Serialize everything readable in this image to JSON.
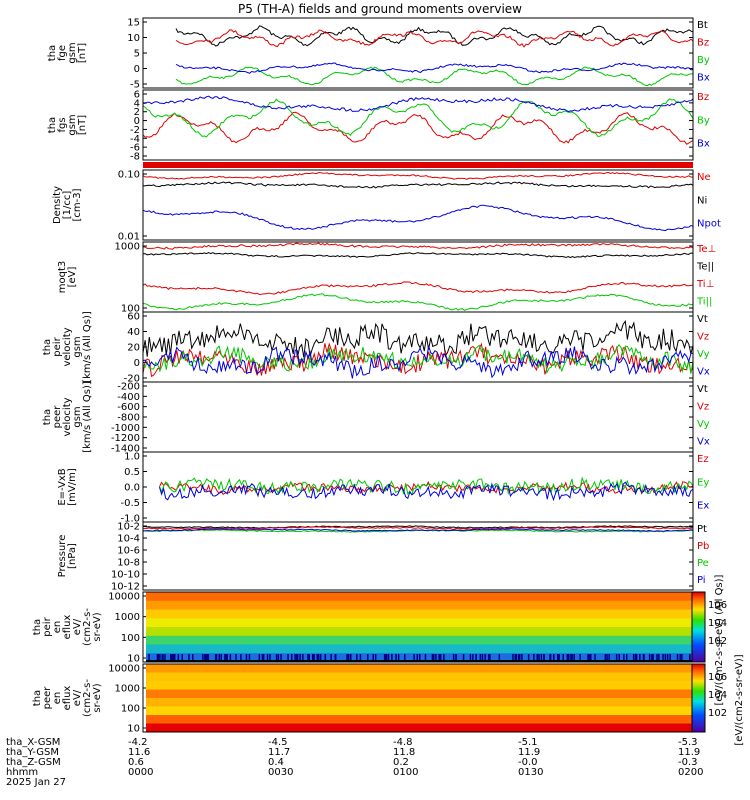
{
  "title": "P5 (TH-A) fields and ground moments overview",
  "colors": {
    "black": "#000000",
    "red": "#e00000",
    "green": "#00c800",
    "blue": "#0000e0"
  },
  "chart_data": [
    {
      "id": "p1",
      "type": "line",
      "ylabel": [
        "tha",
        "fge",
        "gsm",
        "[nT]"
      ],
      "yticks": [
        "15",
        "10",
        "5",
        "0",
        "-5"
      ],
      "ylim": [
        -8,
        16
      ],
      "series": [
        {
          "name": "Bt",
          "color": "black"
        },
        {
          "name": "Bz",
          "color": "red"
        },
        {
          "name": "By",
          "color": "green"
        },
        {
          "name": "Bx",
          "color": "blue"
        }
      ]
    },
    {
      "id": "p2",
      "type": "line",
      "ylabel": [
        "tha",
        "fgs",
        "gsm",
        "[nT]"
      ],
      "yticks": [
        "6",
        "4",
        "2",
        "0",
        "-2",
        "-4",
        "-6",
        "-8"
      ],
      "ylim": [
        -9,
        6.5
      ],
      "series": [
        {
          "name": "Bz",
          "color": "red"
        },
        {
          "name": "By",
          "color": "green"
        },
        {
          "name": "Bx",
          "color": "blue"
        }
      ]
    },
    {
      "id": "p3",
      "type": "line",
      "ylabel": [
        "Density",
        "[1/cc]",
        "[cm-3]"
      ],
      "yticks": [
        "0.10",
        "0.01"
      ],
      "log": true,
      "ylim": [
        0.004,
        0.5
      ],
      "series": [
        {
          "name": "Ne",
          "color": "red"
        },
        {
          "name": "Ni",
          "color": "black"
        },
        {
          "name": "Npot",
          "color": "blue"
        }
      ]
    },
    {
      "id": "p4",
      "type": "line",
      "ylabel": [
        "moqt3",
        "[eV]"
      ],
      "yticks": [
        "1000",
        "100"
      ],
      "log": true,
      "ylim": [
        70,
        8000
      ],
      "series": [
        {
          "name": "Te⊥",
          "color": "red"
        },
        {
          "name": "Te||",
          "color": "black"
        },
        {
          "name": "Ti⊥",
          "color": "red"
        },
        {
          "name": "Ti||",
          "color": "green"
        }
      ]
    },
    {
      "id": "p5",
      "type": "line",
      "ylabel": [
        "tha",
        "peir",
        "velocity",
        "gsm",
        "[km/s (All Qs)]"
      ],
      "yticks": [
        "60",
        "40",
        "20",
        "0",
        "-20"
      ],
      "ylim": [
        -30,
        65
      ],
      "series": [
        {
          "name": "Vt",
          "color": "black"
        },
        {
          "name": "Vz",
          "color": "red"
        },
        {
          "name": "Vy",
          "color": "green"
        },
        {
          "name": "Vx",
          "color": "blue"
        }
      ]
    },
    {
      "id": "p6",
      "type": "line",
      "ylabel": [
        "tha",
        "peer",
        "velocity",
        "gsm",
        "[km/s (All Qs)]"
      ],
      "yticks": [
        "-200",
        "-400",
        "-600",
        "-800",
        "-1000",
        "-1200",
        "-1400"
      ],
      "ylim": [
        -1500,
        -100
      ],
      "series": [
        {
          "name": "Vt",
          "color": "black"
        },
        {
          "name": "Vz",
          "color": "red"
        },
        {
          "name": "Vy",
          "color": "green"
        },
        {
          "name": "Vx",
          "color": "blue"
        }
      ]
    },
    {
      "id": "p7",
      "type": "line",
      "ylabel": [
        "E=-VxB",
        "[mV/m]"
      ],
      "yticks": [
        "1.0",
        "0.5",
        "0.0",
        "-0.5",
        "-1.0"
      ],
      "ylim": [
        -1.1,
        1.1
      ],
      "series": [
        {
          "name": "Ez",
          "color": "red"
        },
        {
          "name": "Ey",
          "color": "green"
        },
        {
          "name": "Ex",
          "color": "blue"
        }
      ]
    },
    {
      "id": "p8",
      "type": "line",
      "ylabel": [
        "Pressure",
        "[nPa]"
      ],
      "yticks": [
        "10-2",
        "10-4",
        "10-6",
        "10-8",
        "10-10",
        "10-12"
      ],
      "log": true,
      "series": [
        {
          "name": "Pt",
          "color": "black"
        },
        {
          "name": "Pb",
          "color": "red"
        },
        {
          "name": "Pe",
          "color": "green"
        },
        {
          "name": "Pi",
          "color": "blue"
        }
      ]
    },
    {
      "id": "p9",
      "type": "heatmap",
      "ylabel": [
        "tha",
        "peir",
        "en",
        "eflux",
        "eV/",
        "(cm2-s-",
        "sr-eV)"
      ],
      "yticks": [
        "10000",
        "1000",
        "100",
        "10"
      ]
    },
    {
      "id": "p10",
      "type": "heatmap",
      "ylabel": [
        "tha",
        "peer",
        "en",
        "eflux",
        "eV/",
        "(cm2-s-",
        "sr-eV)"
      ],
      "yticks": [
        "10000",
        "1000",
        "100",
        "10"
      ]
    }
  ],
  "colorbar": {
    "label": "[eV/(cm2-s-sr-eV)]",
    "label2": "[eV/(cm2-s-sr-eV) (All Qs)]",
    "ticks_top": [
      "106",
      "104",
      "102"
    ],
    "ticks_bottom": [
      "106",
      "104",
      "102"
    ]
  },
  "xaxis": {
    "rows": [
      {
        "label": "tha_X-GSM",
        "values": [
          "-4.2",
          "-4.5",
          "-4.8",
          "-5.1",
          "-5.3"
        ]
      },
      {
        "label": "tha_Y-GSM",
        "values": [
          "11.6",
          "11.7",
          "11.8",
          "11.9",
          "11.9"
        ]
      },
      {
        "label": "tha_Z-GSM",
        "values": [
          "0.6",
          "0.4",
          "0.2",
          "-0.0",
          "-0.3"
        ]
      },
      {
        "label": "hhmm",
        "values": [
          "0000",
          "0030",
          "0100",
          "0130",
          "0200"
        ]
      }
    ],
    "date": "2025 Jan 27"
  }
}
